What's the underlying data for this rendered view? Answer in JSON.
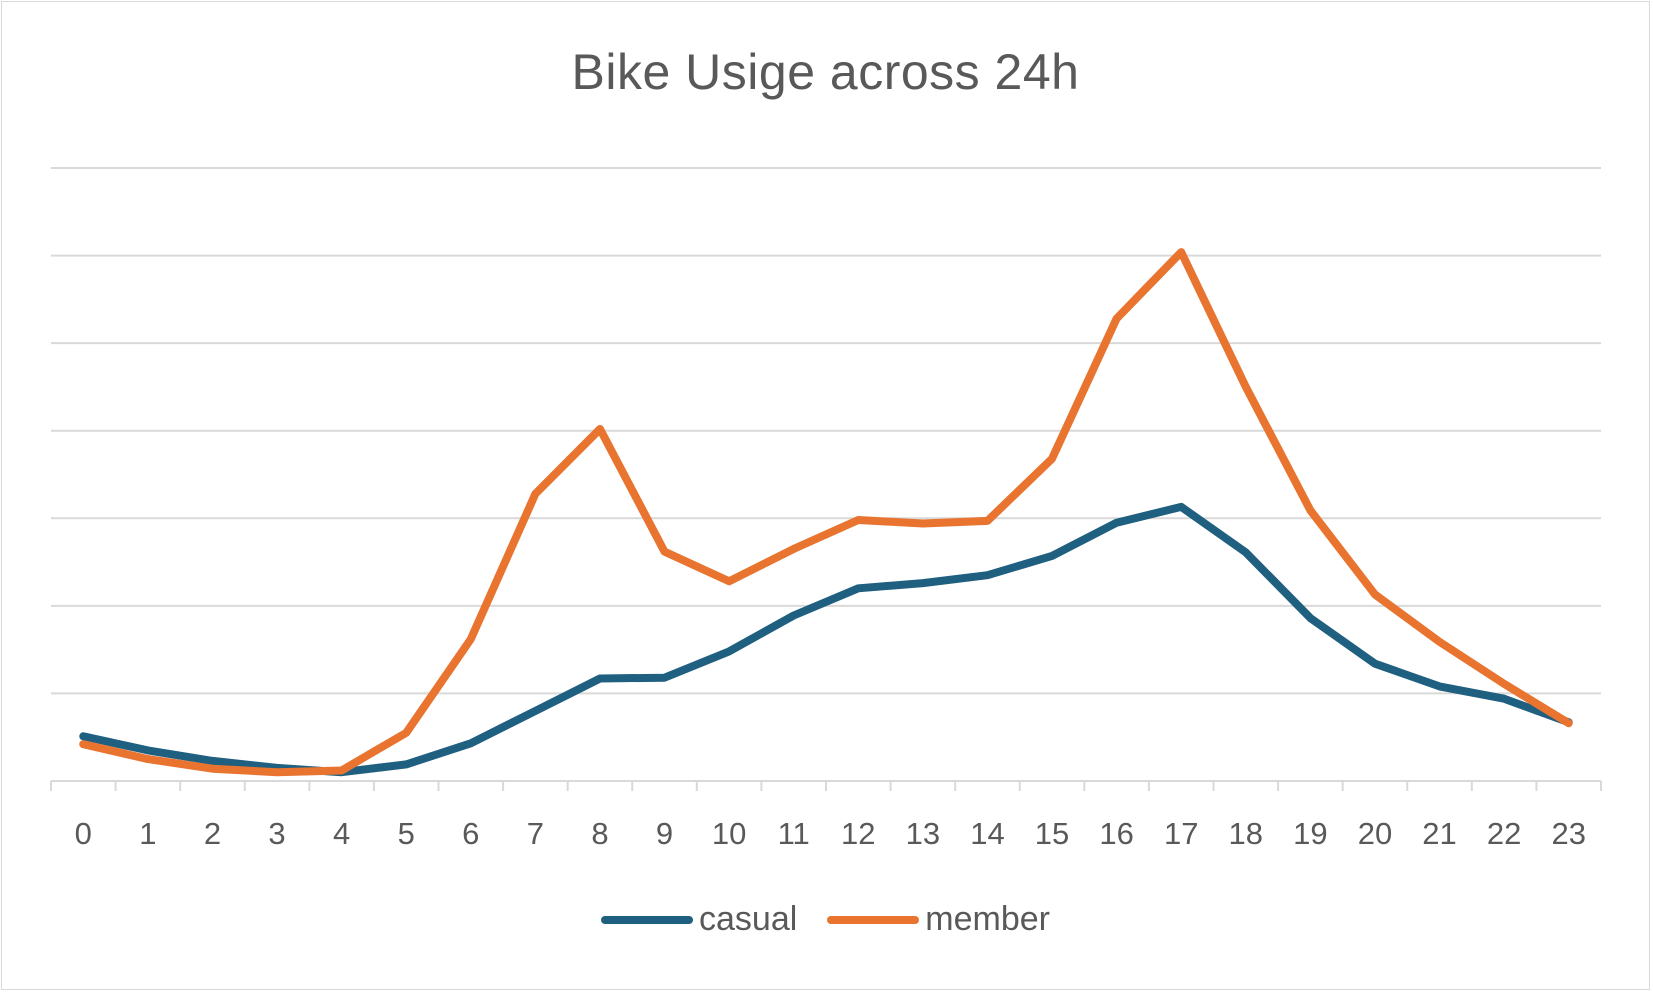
{
  "chart_data": {
    "type": "line",
    "title": "Bike Usige across 24h",
    "categories": [
      "0",
      "1",
      "2",
      "3",
      "4",
      "5",
      "6",
      "7",
      "8",
      "9",
      "10",
      "11",
      "12",
      "13",
      "14",
      "15",
      "16",
      "17",
      "18",
      "19",
      "20",
      "21",
      "22",
      "23"
    ],
    "series": [
      {
        "name": "casual",
        "color": "#1f5f80",
        "values": [
          5.1,
          3.5,
          2.3,
          1.5,
          1.0,
          1.9,
          4.3,
          8.0,
          11.7,
          11.8,
          14.8,
          18.9,
          22.0,
          22.6,
          23.5,
          25.7,
          29.5,
          31.3,
          26.1,
          18.6,
          13.4,
          10.8,
          9.4,
          6.7
        ]
      },
      {
        "name": "member",
        "color": "#e8742f",
        "values": [
          4.2,
          2.5,
          1.4,
          1.0,
          1.2,
          5.5,
          16.2,
          32.8,
          40.2,
          26.2,
          22.8,
          26.5,
          29.8,
          29.4,
          29.7,
          36.8,
          52.8,
          60.4,
          45.0,
          30.9,
          21.3,
          15.9,
          11.1,
          6.6
        ]
      }
    ],
    "ylim": [
      0,
      70
    ],
    "grid": true,
    "legend": "bottom"
  }
}
